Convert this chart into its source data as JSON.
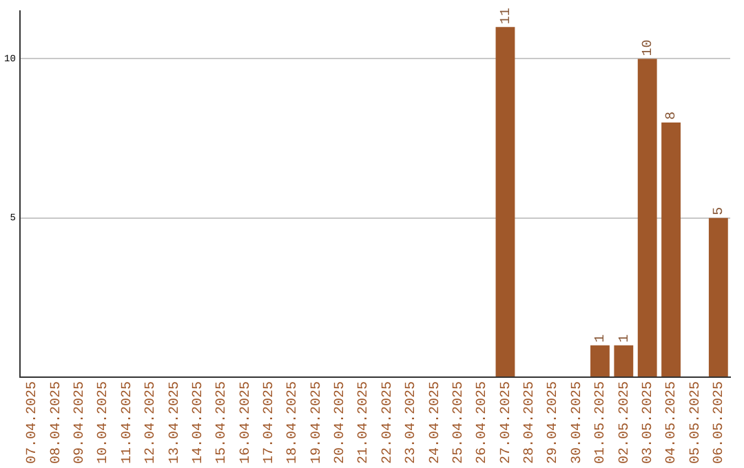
{
  "chart_data": {
    "type": "bar",
    "categories": [
      "07.04.2025",
      "08.04.2025",
      "09.04.2025",
      "10.04.2025",
      "11.04.2025",
      "12.04.2025",
      "13.04.2025",
      "14.04.2025",
      "15.04.2025",
      "16.04.2025",
      "17.04.2025",
      "18.04.2025",
      "19.04.2025",
      "20.04.2025",
      "21.04.2025",
      "22.04.2025",
      "23.04.2025",
      "24.04.2025",
      "25.04.2025",
      "26.04.2025",
      "27.04.2025",
      "28.04.2025",
      "29.04.2025",
      "30.04.2025",
      "01.05.2025",
      "02.05.2025",
      "03.05.2025",
      "04.05.2025",
      "05.05.2025",
      "06.05.2025"
    ],
    "values": [
      0,
      0,
      0,
      0,
      0,
      0,
      0,
      0,
      0,
      0,
      0,
      0,
      0,
      0,
      0,
      0,
      0,
      0,
      0,
      0,
      11,
      0,
      0,
      0,
      1,
      1,
      10,
      8,
      0,
      5
    ],
    "value_labels": [
      null,
      null,
      null,
      null,
      null,
      null,
      null,
      null,
      null,
      null,
      null,
      null,
      null,
      null,
      null,
      null,
      null,
      null,
      null,
      null,
      "11",
      null,
      null,
      null,
      "1",
      "1",
      "10",
      "8",
      null,
      "5"
    ],
    "color": "#a0582a",
    "ylim": [
      0,
      11.5
    ],
    "yticks": [
      {
        "value": 0,
        "label": null
      },
      5,
      10
    ],
    "grid": "y",
    "legend": false
  }
}
